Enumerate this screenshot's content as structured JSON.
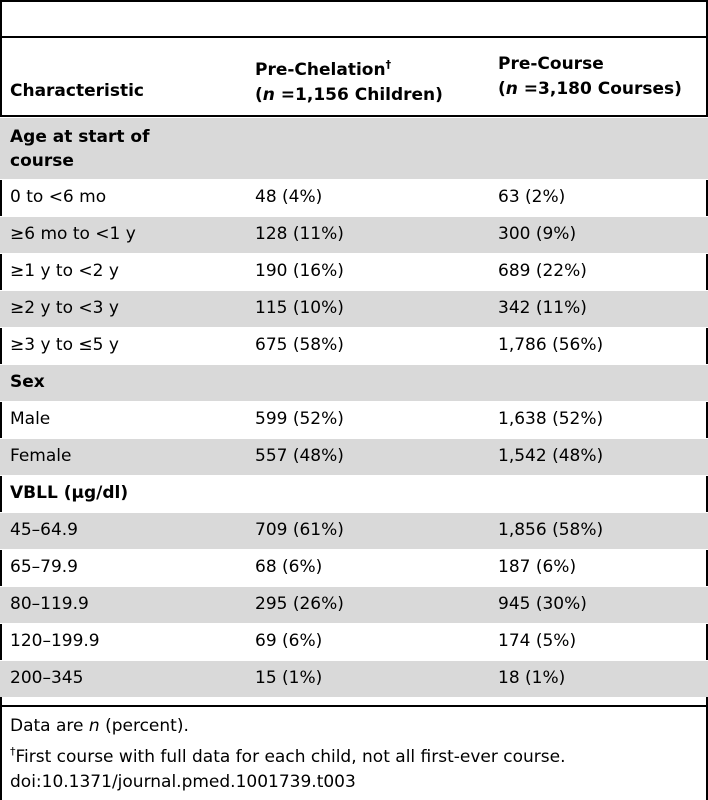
{
  "table": {
    "columns": {
      "characteristic": "Characteristic",
      "pre_chelation_title": "Pre-Chelation",
      "pre_chelation_mark": "†",
      "pre_chelation_n_prefix": "(",
      "n_symbol": "n",
      "pre_chelation_n_rest": " =1,156 Children)",
      "pre_course_title": "Pre-Course",
      "pre_course_n_prefix": "(",
      "pre_course_n_rest": " =3,180 Courses)"
    },
    "rows": [
      {
        "label": "Age at start of course",
        "pre_chelation": "",
        "pre_course": ""
      },
      {
        "label": "0 to <6 mo",
        "pre_chelation": "48 (4%)",
        "pre_course": "63 (2%)"
      },
      {
        "label": "≥6 mo to <1 y",
        "pre_chelation": "128 (11%)",
        "pre_course": "300 (9%)"
      },
      {
        "label": "≥1 y to <2 y",
        "pre_chelation": "190 (16%)",
        "pre_course": "689 (22%)"
      },
      {
        "label": "≥2 y to <3 y",
        "pre_chelation": "115 (10%)",
        "pre_course": "342 (11%)"
      },
      {
        "label": "≥3 y to ≤5 y",
        "pre_chelation": "675 (58%)",
        "pre_course": "1,786 (56%)"
      },
      {
        "label": "Sex",
        "pre_chelation": "",
        "pre_course": ""
      },
      {
        "label": "Male",
        "pre_chelation": "599 (52%)",
        "pre_course": "1,638 (52%)"
      },
      {
        "label": "Female",
        "pre_chelation": "557 (48%)",
        "pre_course": "1,542 (48%)"
      },
      {
        "label": "VBLL (μg/dl)",
        "pre_chelation": "",
        "pre_course": ""
      },
      {
        "label": "45–64.9",
        "pre_chelation": "709 (61%)",
        "pre_course": "1,856 (58%)"
      },
      {
        "label": "65–79.9",
        "pre_chelation": "68 (6%)",
        "pre_course": "187 (6%)"
      },
      {
        "label": "80–119.9",
        "pre_chelation": "295 (26%)",
        "pre_course": "945 (30%)"
      },
      {
        "label": "120–199.9",
        "pre_chelation": "69 (6%)",
        "pre_course": "174 (5%)"
      },
      {
        "label": "200–345",
        "pre_chelation": "15 (1%)",
        "pre_course": "18 (1%)"
      }
    ]
  },
  "footnotes": {
    "line1_prefix": "Data are ",
    "line1_n": "n",
    "line1_suffix": " (percent).",
    "line2_mark": "†",
    "line2_text": "First course with full data for each child, not all first-ever course.",
    "line3": "doi:10.1371/journal.pmed.1001739.t003"
  }
}
